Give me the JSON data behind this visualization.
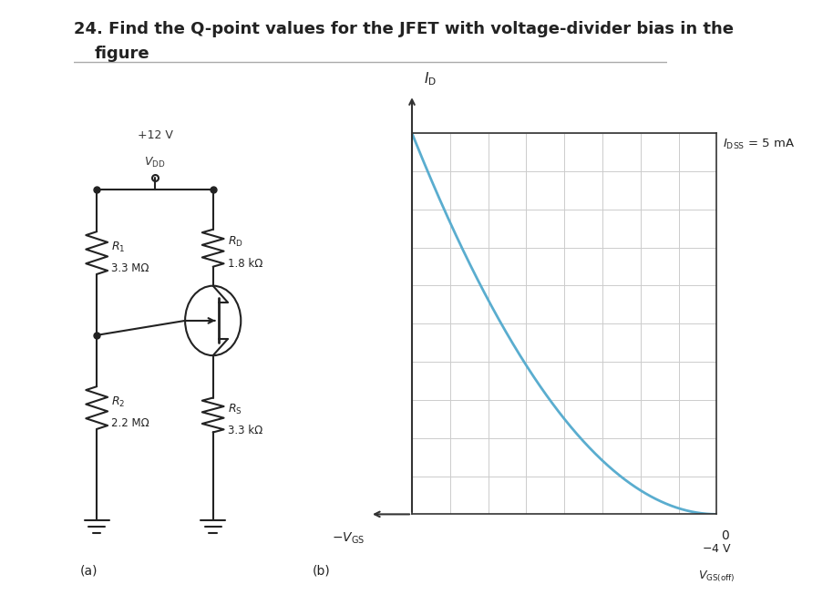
{
  "title_line1": "24. Find the Q-point values for the JFET with voltage-divider bias in the",
  "title_line2": "figure",
  "title_fontsize": 13,
  "background_color": "#ffffff",
  "curve_color": "#5aadcf",
  "grid_color": "#cccccc",
  "axis_color": "#333333",
  "IDSS": 5,
  "VGS_off": -4,
  "label_IDSS": "$I_{\\mathrm{DSS}}$ = 5 mA",
  "label_a": "(a)",
  "label_b": "(b)",
  "VDD_label": "$V_{\\mathrm{DD}}$",
  "VDD_value": "+12 V",
  "R1_label": "$R_1$",
  "R1_value": "3.3 MΩ",
  "R2_label": "$R_2$",
  "R2_value": "2.2 MΩ",
  "RD_label": "$R_{\\mathrm{D}}$",
  "RD_value": "1.8 kΩ",
  "RS_label": "$R_{\\mathrm{S}}$",
  "RS_value": "3.3 kΩ"
}
